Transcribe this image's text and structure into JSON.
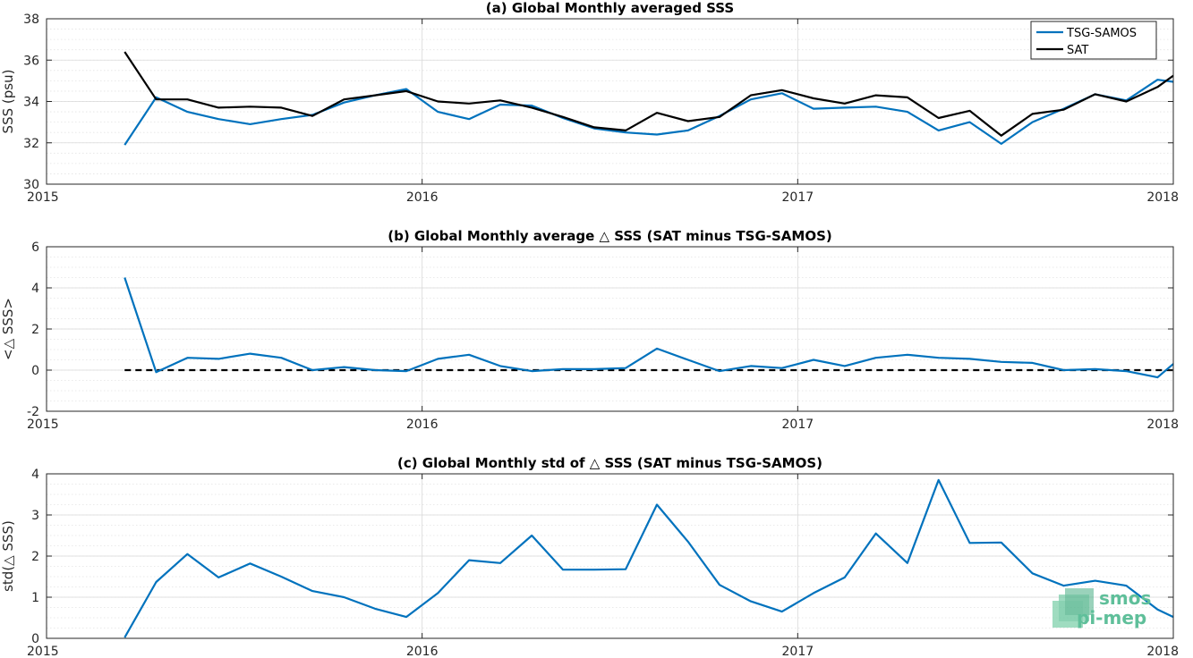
{
  "colors": {
    "tsg": "#0072bd",
    "sat": "#000000",
    "grid": "#d9d9d9",
    "axis": "#262626"
  },
  "logo": {
    "line1": "smos",
    "line2": "pi-mep"
  },
  "chart_data": [
    {
      "type": "line",
      "title": "(a) Global Monthly averaged SSS",
      "ylabel": "SSS (psu)",
      "xlim": [
        2015,
        2018
      ],
      "ylim": [
        30,
        38
      ],
      "x_ticks": [
        2015,
        2016,
        2017,
        2018
      ],
      "x_tick_labels": [
        "2015",
        "2016",
        "2017",
        "2018"
      ],
      "y_ticks": [
        30,
        32,
        34,
        36,
        38
      ],
      "y_tick_labels": [
        "30",
        "32",
        "34",
        "36",
        "38"
      ],
      "grid": true,
      "legend": "top-right",
      "x": [
        2015.208,
        2015.292,
        2015.375,
        2015.458,
        2015.542,
        2015.625,
        2015.708,
        2015.792,
        2015.875,
        2015.958,
        2016.042,
        2016.125,
        2016.208,
        2016.292,
        2016.375,
        2016.458,
        2016.542,
        2016.625,
        2016.708,
        2016.792,
        2016.875,
        2016.958,
        2017.042,
        2017.125,
        2017.208,
        2017.292,
        2017.375,
        2017.458,
        2017.542,
        2017.625,
        2017.708,
        2017.792,
        2017.875,
        2017.958,
        2018.0
      ],
      "series": [
        {
          "name": "TSG-SAMOS",
          "color": "#0072bd",
          "values": [
            31.9,
            34.2,
            33.5,
            33.15,
            32.9,
            33.15,
            33.35,
            33.95,
            34.3,
            34.6,
            33.5,
            33.15,
            33.85,
            33.8,
            33.2,
            32.7,
            32.5,
            32.4,
            32.6,
            33.3,
            34.1,
            34.4,
            33.65,
            33.7,
            33.75,
            33.5,
            32.6,
            33.0,
            31.95,
            33.0,
            33.65,
            34.35,
            34.05,
            35.05,
            34.95
          ]
        },
        {
          "name": "SAT",
          "color": "#000000",
          "values": [
            36.4,
            34.1,
            34.1,
            33.7,
            33.75,
            33.7,
            33.3,
            34.1,
            34.3,
            34.5,
            34.0,
            33.9,
            34.05,
            33.7,
            33.25,
            32.75,
            32.6,
            33.45,
            33.05,
            33.25,
            34.3,
            34.55,
            34.15,
            33.9,
            34.3,
            34.2,
            33.2,
            33.55,
            32.35,
            33.4,
            33.6,
            34.35,
            34.0,
            34.7,
            35.25
          ]
        }
      ]
    },
    {
      "type": "line",
      "title": "(b) Global Monthly average △ SSS (SAT minus TSG-SAMOS)",
      "ylabel": "<△ SSS>",
      "xlim": [
        2015,
        2018
      ],
      "ylim": [
        -2,
        6
      ],
      "x_ticks": [
        2015,
        2016,
        2017,
        2018
      ],
      "x_tick_labels": [
        "2015",
        "2016",
        "2017",
        "2018"
      ],
      "y_ticks": [
        -2,
        0,
        2,
        4,
        6
      ],
      "y_tick_labels": [
        "-2",
        "0",
        "2",
        "4",
        "6"
      ],
      "grid": true,
      "reference_line": 0,
      "x": [
        2015.208,
        2015.292,
        2015.375,
        2015.458,
        2015.542,
        2015.625,
        2015.708,
        2015.792,
        2015.875,
        2015.958,
        2016.042,
        2016.125,
        2016.208,
        2016.292,
        2016.375,
        2016.458,
        2016.542,
        2016.625,
        2016.708,
        2016.792,
        2016.875,
        2016.958,
        2017.042,
        2017.125,
        2017.208,
        2017.292,
        2017.375,
        2017.458,
        2017.542,
        2017.625,
        2017.708,
        2017.792,
        2017.875,
        2017.958,
        2018.0
      ],
      "series": [
        {
          "color": "#0072bd",
          "values": [
            4.5,
            -0.1,
            0.6,
            0.55,
            0.8,
            0.6,
            0.0,
            0.15,
            0.0,
            -0.05,
            0.55,
            0.75,
            0.2,
            -0.05,
            0.05,
            0.05,
            0.1,
            1.05,
            0.5,
            -0.05,
            0.2,
            0.1,
            0.5,
            0.2,
            0.6,
            0.75,
            0.6,
            0.55,
            0.4,
            0.35,
            0.0,
            0.05,
            -0.05,
            -0.35,
            0.3
          ]
        }
      ]
    },
    {
      "type": "line",
      "title": "(c) Global Monthly std of △ SSS (SAT minus TSG-SAMOS)",
      "ylabel": "std(△ SSS)",
      "xlim": [
        2015,
        2018
      ],
      "ylim": [
        0,
        4
      ],
      "x_ticks": [
        2015,
        2016,
        2017,
        2018
      ],
      "x_tick_labels": [
        "2015",
        "2016",
        "2017",
        "2018"
      ],
      "y_ticks": [
        0,
        1,
        2,
        3,
        4
      ],
      "y_tick_labels": [
        "0",
        "1",
        "2",
        "3",
        "4"
      ],
      "grid": true,
      "x": [
        2015.208,
        2015.292,
        2015.375,
        2015.458,
        2015.542,
        2015.625,
        2015.708,
        2015.792,
        2015.875,
        2015.958,
        2016.042,
        2016.125,
        2016.208,
        2016.292,
        2016.375,
        2016.458,
        2016.542,
        2016.625,
        2016.708,
        2016.792,
        2016.875,
        2016.958,
        2017.042,
        2017.125,
        2017.208,
        2017.292,
        2017.375,
        2017.458,
        2017.542,
        2017.625,
        2017.708,
        2017.792,
        2017.875,
        2017.958,
        2018.0
      ],
      "series": [
        {
          "color": "#0072bd",
          "values": [
            0.02,
            1.37,
            2.05,
            1.48,
            1.82,
            1.5,
            1.15,
            1.0,
            0.72,
            0.52,
            1.1,
            1.9,
            1.83,
            2.5,
            1.67,
            1.67,
            1.68,
            3.25,
            2.35,
            1.3,
            0.9,
            0.65,
            1.1,
            1.48,
            2.55,
            1.83,
            3.85,
            2.32,
            2.33,
            1.58,
            1.28,
            1.4,
            1.28,
            0.7,
            0.52
          ]
        }
      ]
    }
  ]
}
